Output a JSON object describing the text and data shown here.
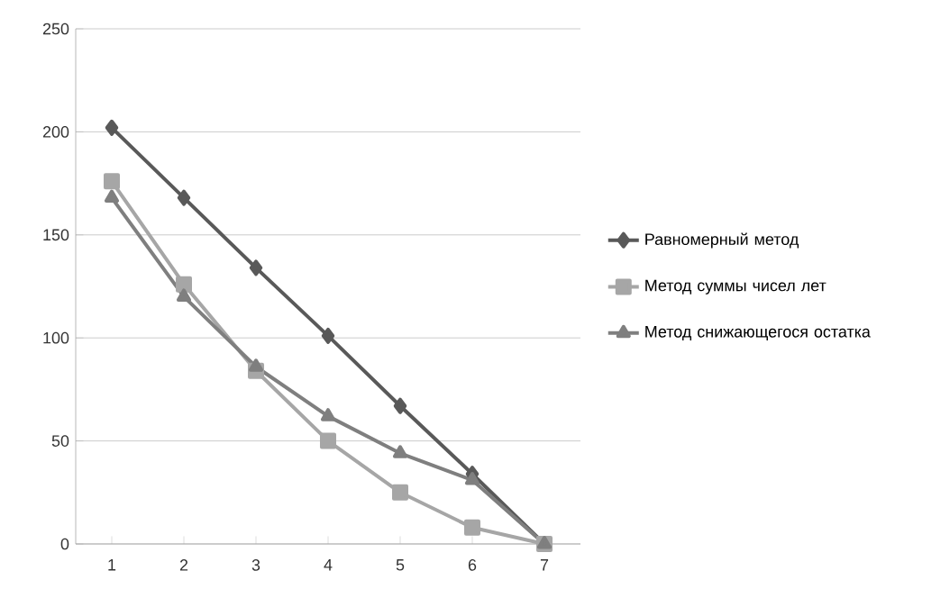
{
  "chart_data": {
    "type": "line",
    "categories": [
      "1",
      "2",
      "3",
      "4",
      "5",
      "6",
      "7"
    ],
    "series": [
      {
        "name": "Равномерный метод",
        "color": "#595959",
        "marker": "diamond",
        "values": [
          202,
          168,
          134,
          101,
          67,
          34,
          0
        ]
      },
      {
        "name": "Метод суммы чисел лет",
        "color": "#a6a6a6",
        "marker": "square",
        "values": [
          176,
          126,
          84,
          50,
          25,
          8,
          0
        ]
      },
      {
        "name": "Метод снижающегося остатка",
        "color": "#7f7f7f",
        "marker": "triangle",
        "values": [
          168,
          120,
          86,
          62,
          44,
          31,
          0
        ]
      }
    ],
    "ylim": [
      0,
      250
    ],
    "yticks": [
      0,
      50,
      100,
      150,
      200,
      250
    ],
    "grid": "y",
    "legend": "right",
    "line_style": "solid"
  }
}
